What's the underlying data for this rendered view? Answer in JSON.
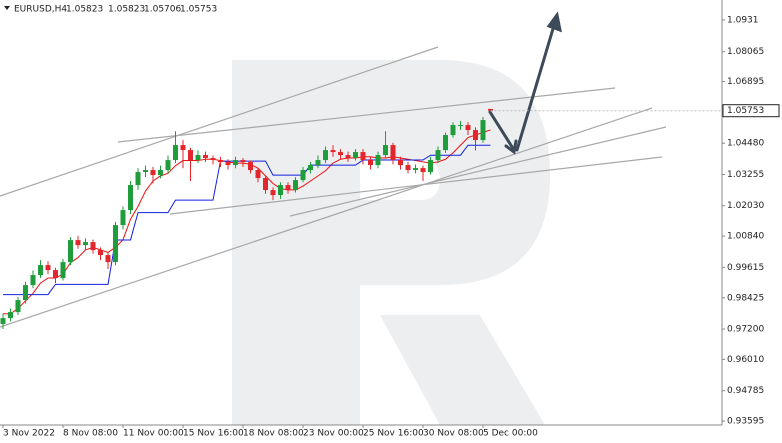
{
  "header": {
    "symbol": "EURUSD,H4",
    "ohlc": [
      1.05823,
      1.05823,
      1.05706,
      1.05753
    ]
  },
  "chart_data": {
    "type": "candlestick",
    "categories": [
      "3 Nov 2022",
      null,
      null,
      null,
      null,
      null,
      null,
      null,
      "8 Nov 08:00",
      null,
      null,
      null,
      null,
      null,
      null,
      null,
      "11 Nov 00:00",
      null,
      null,
      null,
      null,
      null,
      null,
      null,
      "15 Nov 16:00",
      null,
      null,
      null,
      null,
      null,
      null,
      null,
      "18 Nov 08:00",
      null,
      null,
      null,
      null,
      null,
      null,
      null,
      "23 Nov 00:00",
      null,
      null,
      null,
      null,
      null,
      null,
      null,
      "25 Nov 16:00",
      null,
      null,
      null,
      null,
      null,
      null,
      null,
      "30 Nov 08:00",
      null,
      null,
      null,
      null,
      null,
      null,
      null,
      "5 Dec 00:00",
      null
    ],
    "open": [
      0.974,
      0.97628,
      0.97863,
      0.98333,
      0.98921,
      0.99313,
      0.99705,
      0.99509,
      0.99195,
      0.99822,
      1.00684,
      1.00488,
      1.00606,
      1.00292,
      1.00097,
      0.99822,
      1.01272,
      1.0186,
      1.0284,
      1.03349,
      1.03428,
      1.03232,
      1.03428,
      1.0382,
      1.04407,
      1.04211,
      1.0382,
      1.04016,
      1.03898,
      1.0382,
      1.03741,
      1.03624,
      1.0382,
      1.03741,
      1.03428,
      1.03114,
      1.02644,
      1.02448,
      1.0284,
      1.02644,
      1.03036,
      1.03428,
      1.03624,
      1.0382,
      1.04211,
      1.04133,
      1.04016,
      1.03898,
      1.04133,
      1.0382,
      1.03624,
      1.04016,
      1.04407,
      1.0382,
      1.03624,
      1.03428,
      1.03506,
      1.03349,
      1.0382,
      1.04211,
      1.04799,
      1.05191,
      1.05191,
      1.04995,
      1.04603,
      1.05823
    ],
    "high": [
      0.978,
      0.98,
      0.9845,
      0.9905,
      0.995,
      0.999,
      0.9985,
      0.996,
      0.9995,
      1.008,
      1.0085,
      1.0075,
      1.007,
      1.004,
      1.002,
      1.014,
      1.02,
      1.03,
      1.035,
      1.036,
      1.0355,
      1.036,
      1.04,
      1.0495,
      1.046,
      1.043,
      1.042,
      1.0415,
      1.04,
      1.0395,
      1.0385,
      1.0395,
      1.039,
      1.038,
      1.035,
      1.032,
      1.0275,
      1.0295,
      1.0295,
      1.0315,
      1.0355,
      1.0375,
      1.04,
      1.0435,
      1.044,
      1.0425,
      1.0415,
      1.0425,
      1.0425,
      1.0395,
      1.0415,
      1.0495,
      1.045,
      1.0395,
      1.0375,
      1.0365,
      1.036,
      1.0395,
      1.0435,
      1.049,
      1.053,
      1.0535,
      1.053,
      1.051,
      1.055,
      1.05823
    ],
    "low": [
      0.972,
      0.975,
      0.9775,
      0.982,
      0.988,
      0.992,
      0.9935,
      0.99,
      0.991,
      0.997,
      1.0035,
      1.003,
      1.0015,
      0.999,
      0.9955,
      0.997,
      1.011,
      1.017,
      1.0265,
      1.0315,
      1.029,
      1.031,
      1.033,
      1.037,
      1.035,
      1.03,
      1.037,
      1.0375,
      1.0365,
      1.0355,
      1.0345,
      1.035,
      1.0355,
      1.033,
      1.0295,
      1.025,
      1.0225,
      1.023,
      1.025,
      1.0255,
      1.0295,
      1.033,
      1.035,
      1.037,
      1.0395,
      1.0385,
      1.0375,
      1.038,
      1.0365,
      1.0345,
      1.035,
      1.039,
      1.0365,
      1.0345,
      1.033,
      1.033,
      1.03,
      1.0325,
      1.037,
      1.041,
      1.047,
      1.05,
      1.048,
      1.042,
      1.045,
      1.05706
    ],
    "close": [
      0.97628,
      0.97863,
      0.98333,
      0.98921,
      0.99313,
      0.99705,
      0.99509,
      0.99195,
      0.99822,
      1.00684,
      1.00488,
      1.00606,
      1.00292,
      1.00097,
      0.99822,
      1.01272,
      1.0186,
      1.0284,
      1.03349,
      1.03428,
      1.03232,
      1.03428,
      1.0382,
      1.04407,
      1.04211,
      1.0382,
      1.04016,
      1.03898,
      1.0382,
      1.03741,
      1.03624,
      1.0382,
      1.03741,
      1.03428,
      1.03114,
      1.02644,
      1.02448,
      1.0284,
      1.02644,
      1.03036,
      1.03428,
      1.03624,
      1.0382,
      1.04211,
      1.04133,
      1.04016,
      1.03898,
      1.04133,
      1.0382,
      1.03624,
      1.04016,
      1.04407,
      1.0382,
      1.03624,
      1.03428,
      1.03506,
      1.03349,
      1.0382,
      1.04211,
      1.04799,
      1.05191,
      1.05191,
      1.04995,
      1.04603,
      1.05387,
      1.05753
    ],
    "up_color": "#1f9d3a",
    "down_color": "#e3262b",
    "series": [
      {
        "color": "#f01010",
        "values": [
          0.978,
          0.978,
          0.98,
          0.983,
          0.986,
          0.99,
          0.992,
          0.992,
          0.9935,
          0.998,
          1.0,
          1.003,
          1.004,
          1.003,
          1.002,
          1.004,
          1.007,
          1.015,
          1.02,
          1.026,
          1.03,
          1.032,
          1.033,
          1.036,
          1.038,
          1.038,
          1.038,
          1.0385,
          1.0385,
          1.038,
          1.0375,
          1.037,
          1.037,
          1.0365,
          1.035,
          1.032,
          1.029,
          1.027,
          1.0265,
          1.0265,
          1.028,
          1.03,
          1.032,
          1.034,
          1.037,
          1.0385,
          1.039,
          1.039,
          1.0395,
          1.0395,
          1.039,
          1.039,
          1.0395,
          1.039,
          1.0385,
          1.038,
          1.0375,
          1.037,
          1.0375,
          1.0385,
          1.041,
          1.044,
          1.047,
          1.048,
          1.049,
          1.05
        ]
      },
      {
        "color": "#1020e0",
        "values": [
          0.9855,
          0.9855,
          0.9855,
          0.9855,
          0.9855,
          0.9855,
          0.9855,
          0.9895,
          0.9895,
          0.9895,
          0.9895,
          0.9895,
          0.9895,
          0.9895,
          0.9895,
          1.0069,
          1.0069,
          1.0069,
          1.0176,
          1.0176,
          1.0176,
          1.0176,
          1.0176,
          1.0225,
          1.0225,
          1.0225,
          1.0225,
          1.0225,
          1.0225,
          1.0378,
          1.0378,
          1.0378,
          1.0378,
          1.0378,
          1.0378,
          1.0378,
          1.0323,
          1.0323,
          1.0323,
          1.0323,
          1.0323,
          1.0362,
          1.0362,
          1.0362,
          1.0362,
          1.0362,
          1.0362,
          1.0362,
          1.0382,
          1.0382,
          1.0382,
          1.0382,
          1.0382,
          1.0382,
          1.0382,
          1.0382,
          1.0382,
          1.0401,
          1.0401,
          1.0401,
          1.0401,
          1.0401,
          1.044,
          1.044,
          1.044,
          1.044
        ]
      }
    ],
    "last_price": 1.05753,
    "ylim": [
      0.9344,
      1.1009
    ],
    "yticks": [
      1.0931,
      1.08065,
      1.06895,
      {
        "value": 1.0448,
        "label": "1.04480"
      },
      1.03255,
      {
        "value": 1.0203,
        "label": "1.02030"
      },
      {
        "value": 1.0084,
        "label": "1.00840"
      },
      0.99615,
      0.98425,
      {
        "value": 0.972,
        "label": "0.97200"
      },
      {
        "value": 0.9601,
        "label": "0.96010"
      },
      0.94785,
      0.93595
    ]
  }
}
